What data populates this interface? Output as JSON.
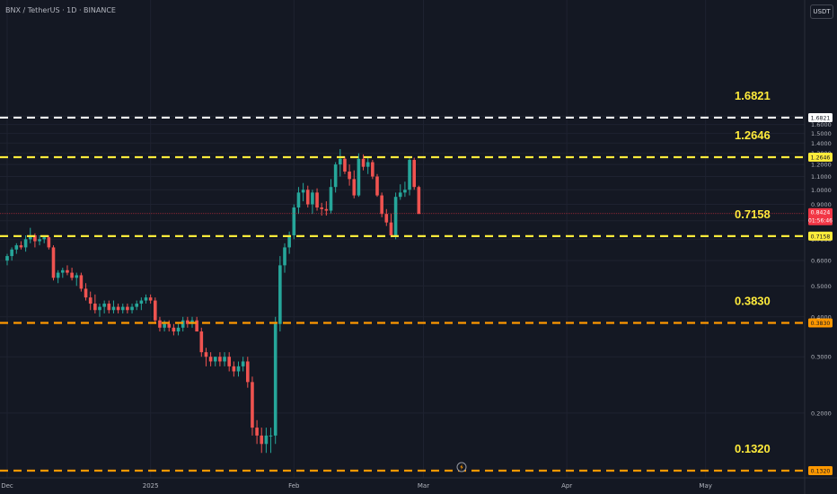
{
  "header": {
    "title": "BNX / TetherUS · 1D · BINANCE"
  },
  "currency": "USDT",
  "chart_data": {
    "type": "candlestick",
    "symbol": "BNX / TetherUS",
    "interval": "1D",
    "exchange": "BINANCE",
    "ylim": [
      0.13,
      1.75
    ],
    "y_ticks": [
      "0.2000",
      "0.3000",
      "0.4000",
      "0.5000",
      "0.6000",
      "0.7000",
      "0.8000",
      "0.9000",
      "1.0000",
      "1.1000",
      "1.2000",
      "1.3000",
      "1.4000",
      "1.5000",
      "1.6000",
      "1.7000"
    ],
    "x_ticks": [
      {
        "label": "Dec",
        "day": 0
      },
      {
        "label": "2025",
        "day": 31
      },
      {
        "label": "Feb",
        "day": 62
      },
      {
        "label": "Mar",
        "day": 90
      },
      {
        "label": "Apr",
        "day": 121
      },
      {
        "label": "May",
        "day": 151
      }
    ],
    "current_price": {
      "value": "0.8424",
      "countdown": "01:56:46",
      "color": "#f23645"
    },
    "levels": [
      {
        "value": 1.6821,
        "label": "1.6821",
        "color": "#ffffff"
      },
      {
        "value": 1.2646,
        "label": "1.2646",
        "color": "#ffeb3b"
      },
      {
        "value": 0.7158,
        "label": "0.7158",
        "color": "#ffeb3b"
      },
      {
        "value": 0.383,
        "label": "0.3830",
        "color": "#ff9800"
      },
      {
        "value": 0.132,
        "label": "0.1320",
        "color": "#ff9800"
      }
    ],
    "colors": {
      "up": "#26a69a",
      "down": "#ef5350",
      "annotation": "#ffeb3b",
      "axis_text": "#b2b5be"
    },
    "candles": [
      [
        0.6,
        0.63,
        0.58,
        0.62
      ],
      [
        0.62,
        0.66,
        0.6,
        0.65
      ],
      [
        0.65,
        0.68,
        0.63,
        0.67
      ],
      [
        0.67,
        0.69,
        0.65,
        0.66
      ],
      [
        0.66,
        0.72,
        0.64,
        0.7
      ],
      [
        0.7,
        0.76,
        0.68,
        0.72
      ],
      [
        0.72,
        0.73,
        0.66,
        0.69
      ],
      [
        0.69,
        0.72,
        0.67,
        0.7
      ],
      [
        0.7,
        0.72,
        0.68,
        0.71
      ],
      [
        0.71,
        0.72,
        0.65,
        0.66
      ],
      [
        0.66,
        0.67,
        0.52,
        0.53
      ],
      [
        0.53,
        0.56,
        0.51,
        0.55
      ],
      [
        0.55,
        0.57,
        0.53,
        0.56
      ],
      [
        0.56,
        0.58,
        0.54,
        0.55
      ],
      [
        0.55,
        0.57,
        0.52,
        0.53
      ],
      [
        0.53,
        0.55,
        0.5,
        0.54
      ],
      [
        0.54,
        0.55,
        0.48,
        0.49
      ],
      [
        0.49,
        0.51,
        0.45,
        0.46
      ],
      [
        0.46,
        0.48,
        0.42,
        0.44
      ],
      [
        0.44,
        0.47,
        0.41,
        0.42
      ],
      [
        0.42,
        0.44,
        0.4,
        0.43
      ],
      [
        0.43,
        0.45,
        0.41,
        0.44
      ],
      [
        0.44,
        0.45,
        0.41,
        0.42
      ],
      [
        0.42,
        0.45,
        0.41,
        0.43
      ],
      [
        0.43,
        0.44,
        0.41,
        0.42
      ],
      [
        0.42,
        0.44,
        0.41,
        0.43
      ],
      [
        0.43,
        0.44,
        0.41,
        0.42
      ],
      [
        0.42,
        0.44,
        0.41,
        0.43
      ],
      [
        0.43,
        0.45,
        0.42,
        0.44
      ],
      [
        0.44,
        0.46,
        0.42,
        0.45
      ],
      [
        0.45,
        0.47,
        0.44,
        0.46
      ],
      [
        0.46,
        0.47,
        0.44,
        0.45
      ],
      [
        0.45,
        0.46,
        0.38,
        0.39
      ],
      [
        0.39,
        0.4,
        0.36,
        0.37
      ],
      [
        0.37,
        0.39,
        0.36,
        0.38
      ],
      [
        0.38,
        0.39,
        0.36,
        0.37
      ],
      [
        0.37,
        0.38,
        0.35,
        0.36
      ],
      [
        0.36,
        0.38,
        0.35,
        0.37
      ],
      [
        0.37,
        0.4,
        0.36,
        0.39
      ],
      [
        0.39,
        0.4,
        0.37,
        0.38
      ],
      [
        0.38,
        0.4,
        0.37,
        0.39
      ],
      [
        0.39,
        0.4,
        0.36,
        0.36
      ],
      [
        0.36,
        0.37,
        0.3,
        0.31
      ],
      [
        0.31,
        0.32,
        0.28,
        0.3
      ],
      [
        0.3,
        0.31,
        0.28,
        0.29
      ],
      [
        0.29,
        0.3,
        0.28,
        0.3
      ],
      [
        0.3,
        0.31,
        0.28,
        0.29
      ],
      [
        0.29,
        0.31,
        0.28,
        0.3
      ],
      [
        0.3,
        0.31,
        0.27,
        0.28
      ],
      [
        0.28,
        0.29,
        0.26,
        0.27
      ],
      [
        0.27,
        0.29,
        0.26,
        0.28
      ],
      [
        0.28,
        0.3,
        0.27,
        0.29
      ],
      [
        0.29,
        0.3,
        0.24,
        0.25
      ],
      [
        0.25,
        0.26,
        0.17,
        0.18
      ],
      [
        0.18,
        0.19,
        0.16,
        0.17
      ],
      [
        0.17,
        0.18,
        0.15,
        0.16
      ],
      [
        0.16,
        0.18,
        0.15,
        0.17
      ],
      [
        0.17,
        0.18,
        0.15,
        0.17
      ],
      [
        0.17,
        0.4,
        0.16,
        0.38
      ],
      [
        0.38,
        0.62,
        0.36,
        0.58
      ],
      [
        0.58,
        0.68,
        0.55,
        0.66
      ],
      [
        0.66,
        0.74,
        0.63,
        0.72
      ],
      [
        0.72,
        0.9,
        0.7,
        0.88
      ],
      [
        0.88,
        1.02,
        0.84,
        0.98
      ],
      [
        0.98,
        1.05,
        0.92,
        1.0
      ],
      [
        1.0,
        1.03,
        0.88,
        0.9
      ],
      [
        0.9,
        1.0,
        0.84,
        0.98
      ],
      [
        0.98,
        1.01,
        0.86,
        0.88
      ],
      [
        0.88,
        0.91,
        0.83,
        0.87
      ],
      [
        0.87,
        0.92,
        0.83,
        0.86
      ],
      [
        0.86,
        1.08,
        0.84,
        1.02
      ],
      [
        1.02,
        1.22,
        0.98,
        1.2
      ],
      [
        1.2,
        1.34,
        1.1,
        1.25
      ],
      [
        1.25,
        1.27,
        1.12,
        1.14
      ],
      [
        1.14,
        1.2,
        1.03,
        1.08
      ],
      [
        1.08,
        1.15,
        0.94,
        0.96
      ],
      [
        0.96,
        1.3,
        0.95,
        1.25
      ],
      [
        1.25,
        1.29,
        1.15,
        1.18
      ],
      [
        1.18,
        1.26,
        1.12,
        1.22
      ],
      [
        1.22,
        1.24,
        1.08,
        1.1
      ],
      [
        1.1,
        1.12,
        0.95,
        0.96
      ],
      [
        0.96,
        0.98,
        0.82,
        0.84
      ],
      [
        0.84,
        0.87,
        0.77,
        0.79
      ],
      [
        0.79,
        0.84,
        0.71,
        0.72
      ],
      [
        0.72,
        0.98,
        0.7,
        0.95
      ],
      [
        0.95,
        1.04,
        0.93,
        0.98
      ],
      [
        0.98,
        1.06,
        0.95,
        1.0
      ],
      [
        1.0,
        1.27,
        0.96,
        1.24
      ],
      [
        1.24,
        1.26,
        1.0,
        1.02
      ],
      [
        1.02,
        1.03,
        0.84,
        0.84
      ]
    ]
  }
}
